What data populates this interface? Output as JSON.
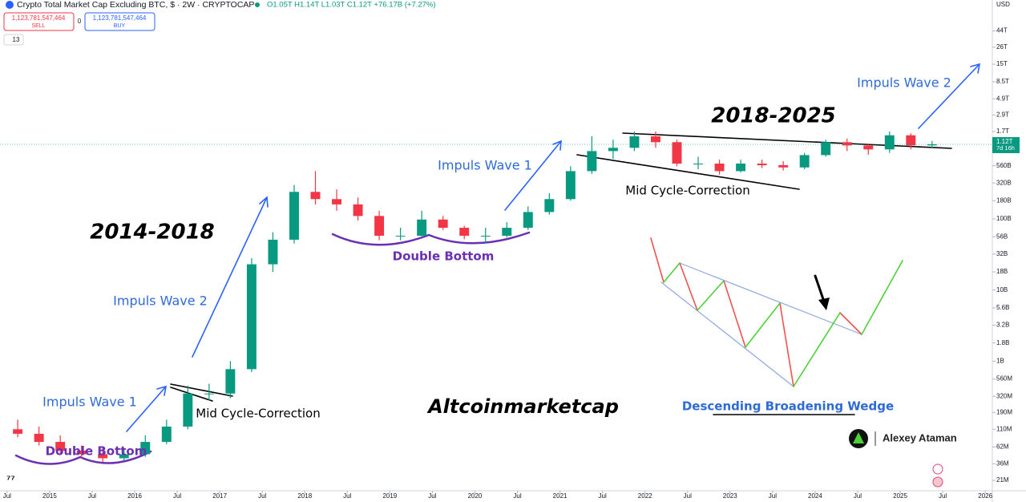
{
  "chart_data": {
    "type": "candlestick",
    "title": "Crypto Total Market Cap Excluding BTC, $ · 2W · CRYPTOCAP",
    "ohlc_summary": "O1.05T H1.14T L1.03T C1.12T +76.17B (+7.27%)",
    "x": [
      "2014-07",
      "2014-10",
      "2015-01",
      "2015-04",
      "2015-07",
      "2015-10",
      "2016-01",
      "2016-04",
      "2016-07",
      "2016-10",
      "2017-01",
      "2017-04",
      "2017-07",
      "2017-10",
      "2018-01",
      "2018-04",
      "2018-07",
      "2018-10",
      "2019-01",
      "2019-04",
      "2019-07",
      "2019-10",
      "2020-01",
      "2020-04",
      "2020-07",
      "2020-10",
      "2021-01",
      "2021-04",
      "2021-07",
      "2021-10",
      "2022-01",
      "2022-04",
      "2022-07",
      "2022-10",
      "2023-01",
      "2023-04",
      "2023-07",
      "2023-10",
      "2024-01",
      "2024-04",
      "2024-07",
      "2024-10",
      "2025-01",
      "2025-04"
    ],
    "open": [
      110000000.0,
      95000000.0,
      73000000.0,
      55000000.0,
      49000000.0,
      43000000.0,
      49000000.0,
      73000000.0,
      120000000.0,
      350000000.0,
      350000000.0,
      770000000.0,
      23000000000.0,
      51000000000.0,
      240000000000.0,
      190000000000.0,
      160000000000.0,
      110000000000.0,
      58000000000.0,
      58000000000.0,
      98000000000.0,
      75000000000.0,
      58000000000.0,
      58000000000.0,
      75000000000.0,
      125000000000.0,
      190000000000.0,
      470000000000.0,
      900000000000.0,
      1000000000000.0,
      1450000000000.0,
      1200000000000.0,
      600000000000.0,
      600000000000.0,
      470000000000.0,
      600000000000.0,
      570000000000.0,
      530000000000.0,
      790000000000.0,
      1200000000000.0,
      1080000000000.0,
      950000000000.0,
      1500000000000.0,
      1080000000000.0
    ],
    "high": [
      150000000.0,
      120000000.0,
      90000000.0,
      65000000.0,
      60000000.0,
      60000000.0,
      90000000.0,
      150000000.0,
      450000000.0,
      480000000.0,
      1000000000.0,
      28000000000.0,
      65000000000.0,
      300000000000.0,
      470000000000.0,
      260000000000.0,
      200000000000.0,
      130000000000.0,
      75000000000.0,
      130000000000.0,
      110000000000.0,
      80000000000.0,
      75000000000.0,
      90000000000.0,
      150000000000.0,
      230000000000.0,
      550000000000.0,
      1450000000000.0,
      1300000000000.0,
      1700000000000.0,
      1700000000000.0,
      1300000000000.0,
      750000000000.0,
      680000000000.0,
      680000000000.0,
      680000000000.0,
      650000000000.0,
      850000000000.0,
      1300000000000.0,
      1350000000000.0,
      1150000000000.0,
      1700000000000.0,
      1600000000000.0,
      1250000000000.0
    ],
    "low": [
      85000000.0,
      65000000.0,
      50000000.0,
      43000000.0,
      38000000.0,
      40000000.0,
      45000000.0,
      68000000.0,
      110000000.0,
      280000000.0,
      300000000.0,
      700000000.0,
      18000000000.0,
      45000000000.0,
      160000000000.0,
      130000000000.0,
      95000000000.0,
      50000000000.0,
      50000000000.0,
      55000000000.0,
      70000000000.0,
      52000000000.0,
      45000000000.0,
      55000000000.0,
      70000000000.0,
      115000000000.0,
      180000000000.0,
      430000000000.0,
      700000000000.0,
      900000000000.0,
      1000000000000.0,
      550000000000.0,
      500000000000.0,
      420000000000.0,
      450000000000.0,
      520000000000.0,
      480000000000.0,
      500000000000.0,
      750000000000.0,
      900000000000.0,
      800000000000.0,
      850000000000.0,
      950000000000.0,
      1000000000000.0
    ],
    "close": [
      95000000.0,
      73000000.0,
      55000000.0,
      49000000.0,
      43000000.0,
      49000000.0,
      73000000.0,
      120000000.0,
      350000000.0,
      350000000.0,
      770000000.0,
      23000000000.0,
      51000000000.0,
      240000000000.0,
      190000000000.0,
      160000000000.0,
      110000000000.0,
      58000000000.0,
      58000000000.0,
      98000000000.0,
      75000000000.0,
      58000000000.0,
      58000000000.0,
      75000000000.0,
      125000000000.0,
      190000000000.0,
      470000000000.0,
      900000000000.0,
      1000000000000.0,
      1450000000000.0,
      1200000000000.0,
      600000000000.0,
      600000000000.0,
      470000000000.0,
      600000000000.0,
      570000000000.0,
      530000000000.0,
      790000000000.0,
      1200000000000.0,
      1080000000000.0,
      950000000000.0,
      1500000000000.0,
      1080000000000.0,
      1120000000000.0
    ],
    "up_color": "#089981",
    "down_color": "#f23645",
    "log_scale": true,
    "grid": false,
    "y_axis_label": "USD",
    "ylim": [
      15000000.0,
      120000000000000.0
    ],
    "yticks": [
      {
        "value": 44000000000000.0,
        "label": "44T"
      },
      {
        "value": 26000000000000.0,
        "label": "26T"
      },
      {
        "value": 15000000000000.0,
        "label": "15T"
      },
      {
        "value": 8500000000000.0,
        "label": "8.5T"
      },
      {
        "value": 4900000000000.0,
        "label": "4.9T"
      },
      {
        "value": 2900000000000.0,
        "label": "2.9T"
      },
      {
        "value": 1700000000000.0,
        "label": "1.7T"
      },
      {
        "value": 560000000000.0,
        "label": "560B"
      },
      {
        "value": 320000000000.0,
        "label": "320B"
      },
      {
        "value": 180000000000.0,
        "label": "180B"
      },
      {
        "value": 100000000000.0,
        "label": "100B"
      },
      {
        "value": 56000000000.0,
        "label": "56B"
      },
      {
        "value": 32000000000.0,
        "label": "32B"
      },
      {
        "value": 18000000000.0,
        "label": "18B"
      },
      {
        "value": 10000000000.0,
        "label": "10B"
      },
      {
        "value": 5600000000.0,
        "label": "5.6B"
      },
      {
        "value": 3200000000.0,
        "label": "3.2B"
      },
      {
        "value": 1800000000.0,
        "label": "1.8B"
      },
      {
        "value": 1000000000.0,
        "label": "1B"
      },
      {
        "value": 560000000.0,
        "label": "560M"
      },
      {
        "value": 320000000.0,
        "label": "320M"
      },
      {
        "value": 190000000.0,
        "label": "190M"
      },
      {
        "value": 110000000.0,
        "label": "110M"
      },
      {
        "value": 62000000.0,
        "label": "62M"
      },
      {
        "value": 36000000.0,
        "label": "36M"
      },
      {
        "value": 21000000.0,
        "label": "21M"
      }
    ],
    "xlim": [
      "2014-06",
      "2026-02"
    ],
    "xticks": [
      {
        "value": "2014-07",
        "label": "Jul"
      },
      {
        "value": "2015-01",
        "label": "2015"
      },
      {
        "value": "2015-07",
        "label": "Jul"
      },
      {
        "value": "2016-01",
        "label": "2016"
      },
      {
        "value": "2016-07",
        "label": "Jul"
      },
      {
        "value": "2017-01",
        "label": "2017"
      },
      {
        "value": "2017-07",
        "label": "Jul"
      },
      {
        "value": "2018-01",
        "label": "2018"
      },
      {
        "value": "2018-07",
        "label": "Jul"
      },
      {
        "value": "2019-01",
        "label": "2019"
      },
      {
        "value": "2019-07",
        "label": "Jul"
      },
      {
        "value": "2020-01",
        "label": "2020"
      },
      {
        "value": "2020-07",
        "label": "Jul"
      },
      {
        "value": "2021-01",
        "label": "2021"
      },
      {
        "value": "2021-07",
        "label": "Jul"
      },
      {
        "value": "2022-01",
        "label": "2022"
      },
      {
        "value": "2022-07",
        "label": "Jul"
      },
      {
        "value": "2023-01",
        "label": "2023"
      },
      {
        "value": "2023-07",
        "label": "Jul"
      },
      {
        "value": "2024-01",
        "label": "2024"
      },
      {
        "value": "2024-07",
        "label": "Jul"
      },
      {
        "value": "2025-01",
        "label": "2025"
      },
      {
        "value": "2025-07",
        "label": "Jul"
      },
      {
        "value": "2026-01",
        "label": "2026"
      }
    ],
    "last_price_label": "1.12T",
    "countdown": "7d 16h",
    "annotations": [
      "2014-2018",
      "2018-2025",
      "Impuls Wave 1",
      "Impuls Wave 2",
      "Impuls Wave 1",
      "Impuls Wave 2",
      "Mid Cycle-Correction",
      "Mid Cycle-Correction",
      "Double Bottom",
      "Double Bottom",
      "Altcoinmarketcap",
      "Descending Broadening Wedge"
    ]
  },
  "toolbar": {
    "sell_price": "1,123,781,547,464",
    "sell_label": "SELL",
    "spread": "0",
    "buy_price": "1,123,781,547,464",
    "buy_label": "BUY",
    "indicator_count": "13"
  },
  "author": "Alexey Ataman"
}
